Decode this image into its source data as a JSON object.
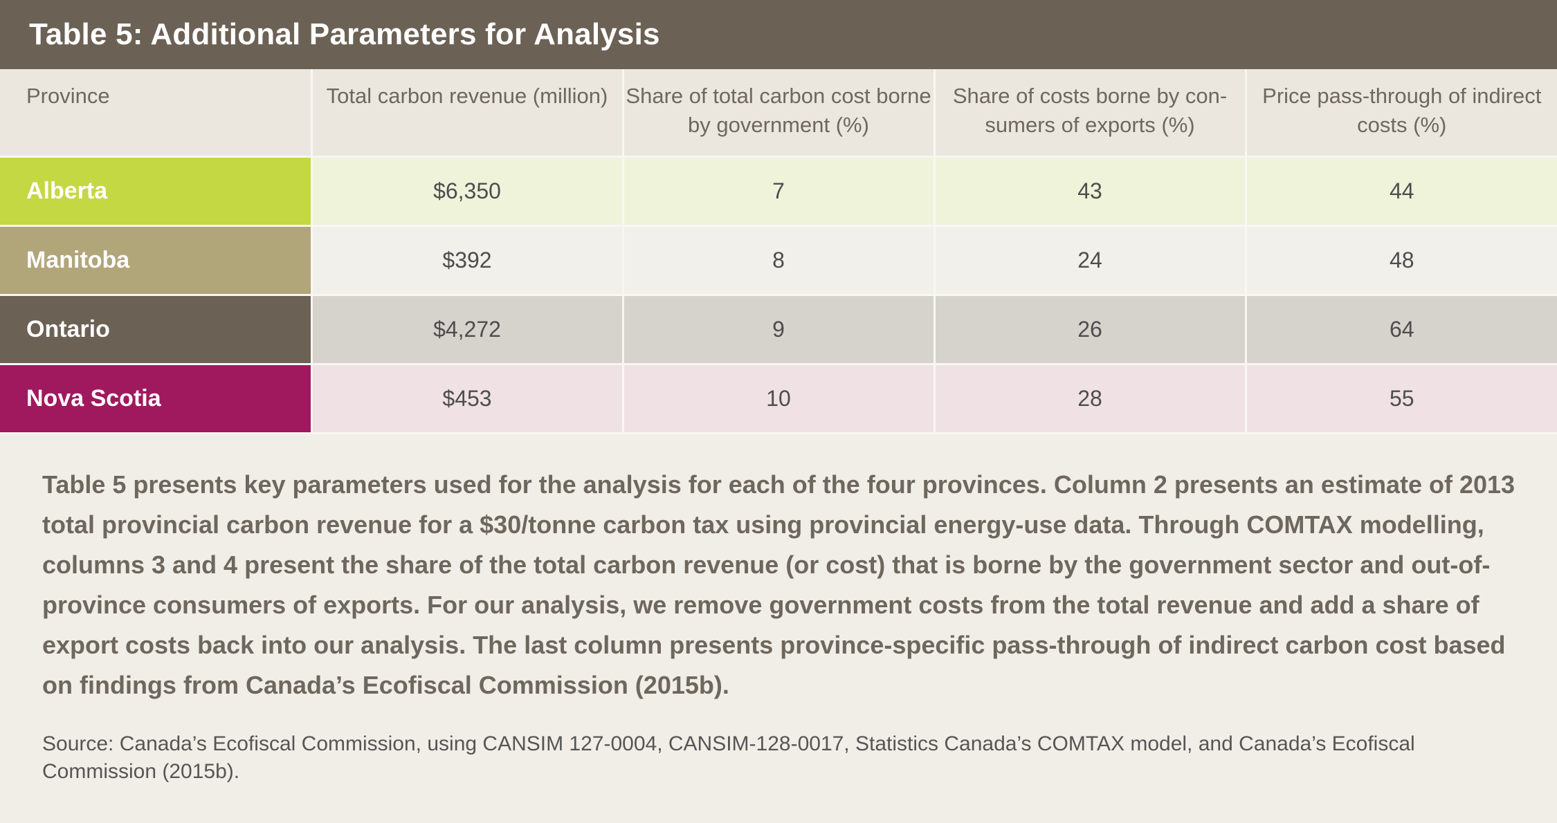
{
  "title": "Table 5: Additional Parameters for Analysis",
  "table": {
    "headers": [
      "Province",
      "Total carbon revenue (million)",
      "Share of total carbon cost borne by government (%)",
      "Share of costs borne by con-sumers of exports (%)",
      "Price pass-through of indirect costs (%)"
    ],
    "rows": [
      {
        "province": "Alberta",
        "revenue": "$6,350",
        "gov_share": "7",
        "export_share": "43",
        "pass_through": "44"
      },
      {
        "province": "Manitoba",
        "revenue": "$392",
        "gov_share": "8",
        "export_share": "24",
        "pass_through": "48"
      },
      {
        "province": "Ontario",
        "revenue": "$4,272",
        "gov_share": "9",
        "export_share": "26",
        "pass_through": "64"
      },
      {
        "province": "Nova Scotia",
        "revenue": "$453",
        "gov_share": "10",
        "export_share": "28",
        "pass_through": "55"
      }
    ]
  },
  "colors": {
    "title_bar": "#6b6155",
    "alberta": "#c4d843",
    "manitoba": "#b1a57a",
    "ontario": "#6b6155",
    "nova_scotia": "#a0195e"
  },
  "description": "Table 5 presents key parameters used for the analysis for each of the four provinces. Column 2 presents an estimate of 2013 total provincial carbon revenue for a $30/tonne carbon tax using provincial energy-use data. Through COMTAX modelling, columns 3 and 4 present the share of the total carbon revenue (or cost) that is borne by the government sector and out-of-province consumers of exports. For our analysis, we remove government costs from the total revenue and add a share of export costs back into our analysis. The last column presents province-specific pass-through of indirect carbon cost based on findings from Canada’s Ecofiscal Commission (2015b).",
  "source": "Source: Canada’s Ecofiscal Commission, using CANSIM 127-0004, CANSIM-128-0017, Statistics Canada’s COMTAX model, and Canada’s Ecofiscal Commission (2015b)."
}
